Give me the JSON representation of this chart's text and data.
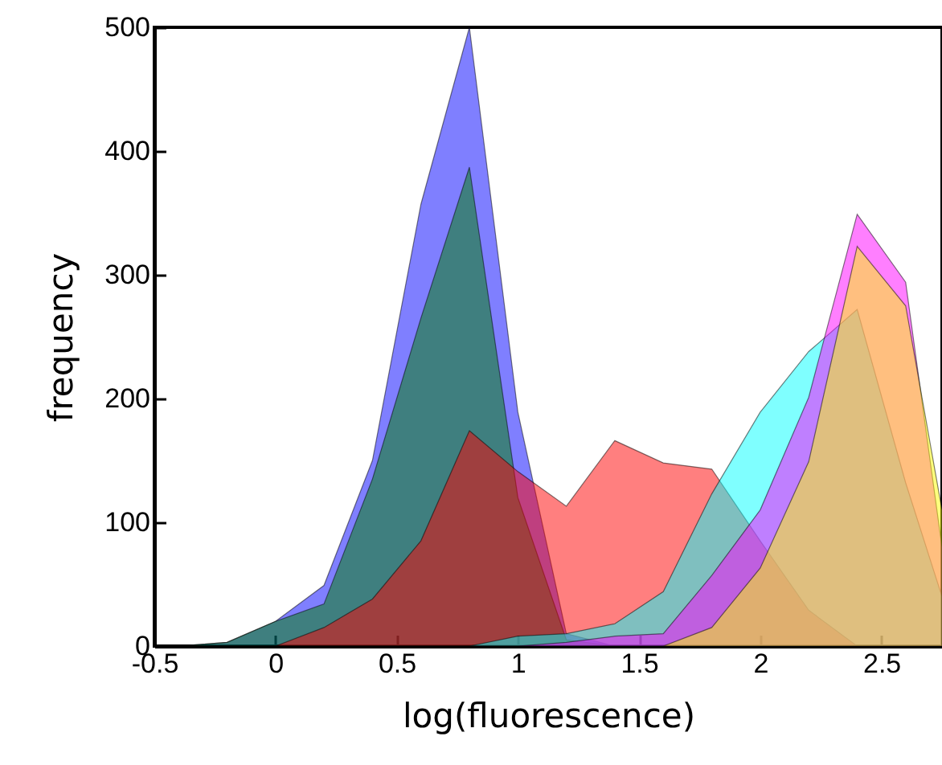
{
  "chart_data": {
    "type": "area",
    "xlabel": "log(fluorescence)",
    "ylabel": "frequency",
    "x": [
      -0.4,
      -0.2,
      0,
      0.2,
      0.4,
      0.6,
      0.8,
      1,
      1.2,
      1.4,
      1.6,
      1.8,
      2,
      2.2,
      2.4,
      2.6,
      2.75
    ],
    "xlim": [
      -0.5,
      2.75
    ],
    "xticks": [
      -0.5,
      0,
      0.5,
      1,
      1.5,
      2,
      2.5
    ],
    "ylim": [
      0,
      500
    ],
    "yticks": [
      0,
      100,
      200,
      300,
      400,
      500
    ],
    "grid": false,
    "series": [
      {
        "color": "#0000ff",
        "values": [
          0,
          3,
          20,
          49,
          150,
          357,
          500,
          189,
          10,
          0,
          0,
          0,
          0,
          0,
          0,
          0,
          0
        ]
      },
      {
        "color": "#008000",
        "values": [
          0,
          3,
          20,
          34,
          135,
          265,
          387,
          120,
          5,
          0,
          0,
          0,
          0,
          0,
          0,
          0,
          0
        ]
      },
      {
        "color": "#ff0000",
        "values": [
          0,
          0,
          0,
          15,
          38,
          85,
          174,
          141,
          113,
          166,
          148,
          143,
          85,
          29,
          0,
          0,
          0
        ]
      },
      {
        "color": "#00ffff",
        "values": [
          0,
          0,
          0,
          0,
          0,
          0,
          0,
          8,
          10,
          18,
          44,
          123,
          189,
          238,
          272,
          132,
          40
        ]
      },
      {
        "color": "#ff00ff",
        "values": [
          0,
          0,
          0,
          0,
          0,
          0,
          0,
          0,
          3,
          8,
          10,
          57,
          110,
          201,
          349,
          294,
          80
        ]
      },
      {
        "color": "#ffff00",
        "values": [
          0,
          0,
          0,
          0,
          0,
          0,
          0,
          0,
          0,
          0,
          0,
          15,
          63,
          149,
          323,
          275,
          110
        ]
      }
    ]
  }
}
